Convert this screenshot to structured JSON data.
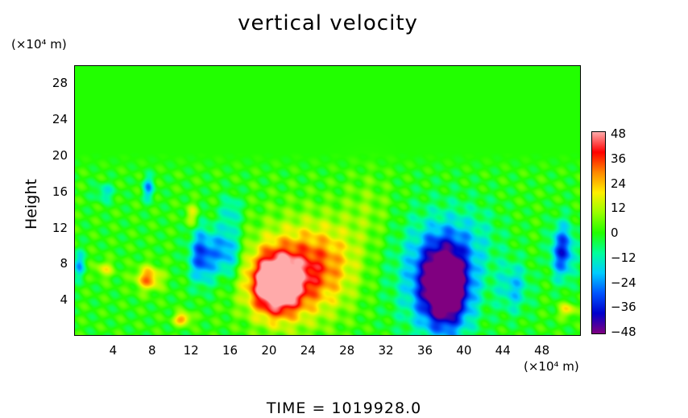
{
  "chart_data": {
    "type": "heatmap",
    "title": "vertical velocity",
    "ylabel": "Height",
    "x_unit": "(×10⁴ m)",
    "y_unit": "(×10⁴ m)",
    "footer": "TIME  =  1019928.0",
    "xlim": [
      0,
      52
    ],
    "ylim": [
      0,
      30
    ],
    "xticks": [
      "4",
      "8",
      "12",
      "16",
      "20",
      "24",
      "28",
      "32",
      "36",
      "40",
      "44",
      "48"
    ],
    "yticks": [
      "4",
      "8",
      "12",
      "16",
      "20",
      "24",
      "28"
    ],
    "colorbar": {
      "range": [
        -48,
        48
      ],
      "ticks": [
        "48",
        "36",
        "24",
        "12",
        "0",
        "−12",
        "−24",
        "−36",
        "−48"
      ],
      "colors": [
        "#ffaaaa",
        "#ff0000",
        "#ff8800",
        "#ffee00",
        "#99ff00",
        "#22ff00",
        "#00ff99",
        "#00ccff",
        "#0055ff",
        "#0000cc",
        "#800080"
      ]
    },
    "background_value": 0,
    "features": [
      {
        "x": 20.5,
        "y": 5.8,
        "sx": 2.4,
        "sy": 3.2,
        "v": 56
      },
      {
        "x": 22.5,
        "y": 7.0,
        "sx": 4.6,
        "sy": 5.2,
        "v": 30
      },
      {
        "x": 26.0,
        "y": 8.5,
        "sx": 3.5,
        "sy": 4.5,
        "v": 14
      },
      {
        "x": 38.0,
        "y": 5.5,
        "sx": 2.3,
        "sy": 4.5,
        "v": -56
      },
      {
        "x": 37.0,
        "y": 7.0,
        "sx": 4.0,
        "sy": 6.0,
        "v": -26
      },
      {
        "x": 7.5,
        "y": 6.5,
        "sx": 1.3,
        "sy": 1.3,
        "v": 30
      },
      {
        "x": 3.0,
        "y": 7.5,
        "sx": 1.0,
        "sy": 0.9,
        "v": 16
      },
      {
        "x": 11.0,
        "y": 2.0,
        "sx": 0.9,
        "sy": 0.7,
        "v": 28
      },
      {
        "x": 12.0,
        "y": 13.5,
        "sx": 0.7,
        "sy": 1.2,
        "v": 16
      },
      {
        "x": 13.0,
        "y": 9.0,
        "sx": 1.3,
        "sy": 3.0,
        "v": -32
      },
      {
        "x": 15.5,
        "y": 9.5,
        "sx": 1.4,
        "sy": 2.8,
        "v": -26
      },
      {
        "x": 16.0,
        "y": 14.0,
        "sx": 1.0,
        "sy": 1.8,
        "v": -14
      },
      {
        "x": 3.0,
        "y": 16.0,
        "sx": 1.0,
        "sy": 1.0,
        "v": -14
      },
      {
        "x": 7.5,
        "y": 16.5,
        "sx": 0.6,
        "sy": 1.3,
        "v": -22
      },
      {
        "x": 45.0,
        "y": 5.5,
        "sx": 1.6,
        "sy": 2.8,
        "v": -18
      },
      {
        "x": 50.0,
        "y": 9.5,
        "sx": 1.2,
        "sy": 3.0,
        "v": -34
      },
      {
        "x": 50.5,
        "y": 3.0,
        "sx": 0.9,
        "sy": 0.8,
        "v": 20
      },
      {
        "x": 30.0,
        "y": 14.0,
        "sx": 2.5,
        "sy": 4.0,
        "v": 7
      },
      {
        "x": 41.0,
        "y": 11.0,
        "sx": 3.0,
        "sy": 4.0,
        "v": -8
      },
      {
        "x": 0.4,
        "y": 8.0,
        "sx": 0.6,
        "sy": 1.5,
        "v": -20
      }
    ]
  }
}
